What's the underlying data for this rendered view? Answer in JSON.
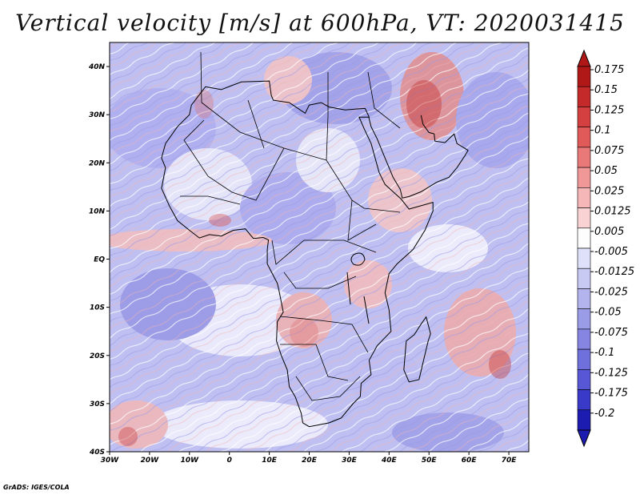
{
  "title": "Vertical velocity [m/s] at 600hPa, VT: 2020031415",
  "footer": "GrADS: IGES/COLA",
  "map": {
    "region": "Africa",
    "lat_range": [
      -40,
      45
    ],
    "lon_range": [
      -30,
      75
    ],
    "lat_ticks": [
      {
        "value": 40,
        "label": "40N"
      },
      {
        "value": 30,
        "label": "30N"
      },
      {
        "value": 20,
        "label": "20N"
      },
      {
        "value": 10,
        "label": "10N"
      },
      {
        "value": 0,
        "label": "EQ"
      },
      {
        "value": -10,
        "label": "10S"
      },
      {
        "value": -20,
        "label": "20S"
      },
      {
        "value": -30,
        "label": "30S"
      },
      {
        "value": -40,
        "label": "40S"
      }
    ],
    "lon_ticks": [
      {
        "value": -30,
        "label": "30W"
      },
      {
        "value": -20,
        "label": "20W"
      },
      {
        "value": -10,
        "label": "10W"
      },
      {
        "value": 0,
        "label": "0"
      },
      {
        "value": 10,
        "label": "10E"
      },
      {
        "value": 20,
        "label": "20E"
      },
      {
        "value": 30,
        "label": "30E"
      },
      {
        "value": 40,
        "label": "40E"
      },
      {
        "value": 50,
        "label": "50E"
      },
      {
        "value": 60,
        "label": "60E"
      },
      {
        "value": 70,
        "label": "70E"
      }
    ],
    "coastline_lonlat": [
      [
        -17,
        21
      ],
      [
        -16,
        24
      ],
      [
        -13,
        27.5
      ],
      [
        -10,
        30
      ],
      [
        -9.5,
        32
      ],
      [
        -6,
        35.8
      ],
      [
        -2,
        35.2
      ],
      [
        3,
        36.8
      ],
      [
        10,
        37
      ],
      [
        10.5,
        34
      ],
      [
        11,
        33
      ],
      [
        15,
        32.5
      ],
      [
        19,
        30.3
      ],
      [
        20,
        32
      ],
      [
        23,
        32.5
      ],
      [
        25,
        31.6
      ],
      [
        29,
        31
      ],
      [
        32,
        31.2
      ],
      [
        34,
        31.3
      ],
      [
        35,
        29.5
      ],
      [
        32.5,
        29.5
      ],
      [
        33.8,
        27
      ],
      [
        35.5,
        24
      ],
      [
        37.5,
        18
      ],
      [
        39,
        15.5
      ],
      [
        43,
        12.5
      ],
      [
        45,
        10.4
      ],
      [
        51,
        11.8
      ],
      [
        51,
        10
      ],
      [
        49,
        6
      ],
      [
        46,
        2
      ],
      [
        42,
        -1
      ],
      [
        40,
        -3
      ],
      [
        39.5,
        -5
      ],
      [
        39,
        -7
      ],
      [
        40,
        -10.5
      ],
      [
        40.5,
        -15
      ],
      [
        37,
        -18
      ],
      [
        35,
        -21
      ],
      [
        35.5,
        -24
      ],
      [
        33,
        -25.8
      ],
      [
        32.8,
        -28.5
      ],
      [
        31,
        -30
      ],
      [
        28,
        -33
      ],
      [
        25,
        -34
      ],
      [
        20,
        -34.8
      ],
      [
        18.4,
        -34
      ],
      [
        18,
        -32
      ],
      [
        16.5,
        -28.6
      ],
      [
        15,
        -26.5
      ],
      [
        14.5,
        -23
      ],
      [
        13,
        -20
      ],
      [
        11.8,
        -17
      ],
      [
        12,
        -13
      ],
      [
        13.5,
        -11
      ],
      [
        12.3,
        -6
      ],
      [
        12,
        -5
      ],
      [
        9.5,
        -1
      ],
      [
        9.5,
        2
      ],
      [
        9.8,
        4
      ],
      [
        8.5,
        4.5
      ],
      [
        6,
        4.3
      ],
      [
        4,
        6.3
      ],
      [
        1,
        6
      ],
      [
        -2,
        4.8
      ],
      [
        -5,
        5.1
      ],
      [
        -7.5,
        4.4
      ],
      [
        -10,
        6
      ],
      [
        -13,
        8
      ],
      [
        -15,
        11
      ],
      [
        -17,
        14.7
      ],
      [
        -16,
        19
      ],
      [
        -17,
        21
      ]
    ],
    "madagascar_lonlat": [
      [
        49.3,
        -12
      ],
      [
        50.4,
        -15.5
      ],
      [
        49.8,
        -17
      ],
      [
        48.8,
        -20.5
      ],
      [
        47.5,
        -25
      ],
      [
        45,
        -25.5
      ],
      [
        43.7,
        -23
      ],
      [
        44,
        -20
      ],
      [
        44.3,
        -17
      ],
      [
        46.3,
        -15.7
      ],
      [
        48,
        -13.5
      ],
      [
        49.3,
        -12
      ]
    ],
    "arabia_lonlat": [
      [
        34.9,
        29.5
      ],
      [
        35.5,
        27.5
      ],
      [
        37,
        25
      ],
      [
        38.5,
        22
      ],
      [
        39.5,
        20
      ],
      [
        41,
        17
      ],
      [
        42.8,
        14.5
      ],
      [
        43.3,
        12.7
      ],
      [
        45,
        13
      ],
      [
        48,
        14
      ],
      [
        52,
        16
      ],
      [
        55,
        17
      ],
      [
        57,
        19
      ],
      [
        59,
        21.5
      ],
      [
        59.8,
        22.6
      ],
      [
        57,
        24
      ],
      [
        56.3,
        26
      ],
      [
        54,
        24.2
      ],
      [
        51.5,
        24.5
      ],
      [
        51.3,
        26
      ],
      [
        50,
        26.3
      ],
      [
        48.5,
        28
      ],
      [
        48,
        29.9
      ]
    ]
  },
  "colorbar": {
    "colors": [
      "#b01818",
      "#c52a2a",
      "#d44040",
      "#e05a5a",
      "#e97878",
      "#f09898",
      "#f5b7b7",
      "#f9d3d3",
      "#fdfdfd",
      "#dfe0f9",
      "#c9caf3",
      "#b3b4ee",
      "#9b9ce8",
      "#8686e2",
      "#7070dc",
      "#5858d6",
      "#3a3ac8",
      "#1c1cb0"
    ],
    "labels": [
      "0.175",
      "0.15",
      "0.125",
      "0.1",
      "0.075",
      "0.05",
      "0.025",
      "0.0125",
      "0.005",
      "-0.005",
      "-0.0125",
      "-0.025",
      "-0.05",
      "-0.075",
      "-0.1",
      "-0.125",
      "-0.175",
      "-0.2"
    ]
  }
}
